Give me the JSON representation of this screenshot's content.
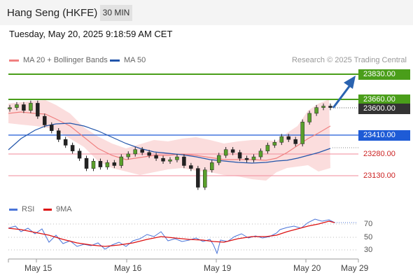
{
  "header": {
    "title": "Hang Seng (HKFE)",
    "timeframe": "30 MIN"
  },
  "datetime": "Tuesday, May 20, 2025 9:18:59 AM CET",
  "legend": {
    "items": [
      {
        "label": "MA 20 + Bollinger Bands",
        "color": "#f08080"
      },
      {
        "label": "MA 50",
        "color": "#2255aa"
      }
    ],
    "credit": "Research © 2025 Trading Central"
  },
  "levels": {
    "resistance_2": "23830.00",
    "resistance_1": "23660.00",
    "last": "23600.00",
    "pivot": "23410.00",
    "support_1": "23280.00",
    "support_2": "23130.00"
  },
  "rsi_legend": {
    "rsi": "RSI",
    "ma": "9MA",
    "rsi_color": "#4a74d8",
    "ma_color": "#dd1111"
  },
  "rsi_ticks": [
    "70",
    "50",
    "30"
  ],
  "x_axis": [
    "May 15",
    "May 16",
    "May 19",
    "May 20",
    "May 29"
  ],
  "colors": {
    "green": "#4a9e1a",
    "blue": "#1e5bd6",
    "red": "#cc2222",
    "band": "#fbdddd",
    "arrow": "#2a63b0"
  },
  "chart_data": {
    "type": "candlestick",
    "instrument": "Hang Seng (HKFE)",
    "timeframe": "30 MIN",
    "x_labels": [
      "May 15",
      "May 16",
      "May 19",
      "May 20",
      "May 29"
    ],
    "price_levels": [
      23830,
      23660,
      23600,
      23410,
      23280,
      23130
    ],
    "close_path": [
      23600,
      23620,
      23580,
      23630,
      23540,
      23480,
      23440,
      23380,
      23340,
      23300,
      23250,
      23180,
      23230,
      23190,
      23220,
      23200,
      23260,
      23280,
      23310,
      23290,
      23270,
      23250,
      23230,
      23240,
      23260,
      23200,
      23180,
      23050,
      23170,
      23220,
      23270,
      23310,
      23290,
      23250,
      23240,
      23260,
      23300,
      23340,
      23360,
      23400,
      23380,
      23350,
      23500,
      23560,
      23600,
      23610,
      23600
    ],
    "rsi_axis": [
      70,
      50,
      30
    ]
  }
}
